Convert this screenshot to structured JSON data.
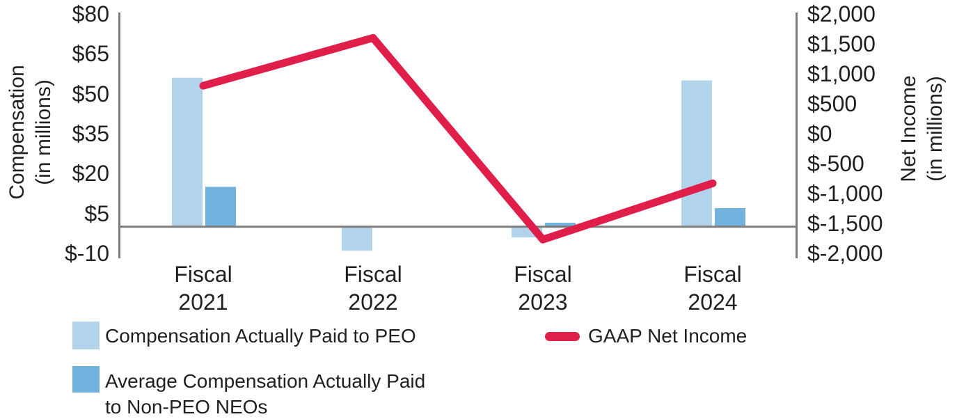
{
  "chart_data": {
    "type": "bar+line combo",
    "categories": [
      "Fiscal 2021",
      "Fiscal 2022",
      "Fiscal 2023",
      "Fiscal 2024"
    ],
    "series": [
      {
        "name": "Compensation Actually Paid to PEO",
        "type": "bar",
        "axis": "left",
        "color": "#b2d3ec",
        "values": [
          56,
          -9,
          -4,
          55
        ]
      },
      {
        "name": "Average Compensation Actually Paid to Non-PEO NEOs",
        "type": "bar",
        "axis": "left",
        "color": "#72b2de",
        "values": [
          15,
          0,
          1.5,
          7
        ]
      },
      {
        "name": "GAAP Net Income",
        "type": "line",
        "axis": "right",
        "color": "#e01e4a",
        "values": [
          800,
          1600,
          -1770,
          -830
        ]
      }
    ],
    "left_axis": {
      "title_line1": "Compensation",
      "title_line2": "(in millions)",
      "range": [
        -10,
        80
      ],
      "tick_values": [
        80,
        65,
        50,
        35,
        20,
        5,
        -10
      ],
      "tick_labels": [
        "$80",
        "$65",
        "$50",
        "$35",
        "$20",
        "$5",
        "$-10"
      ]
    },
    "right_axis": {
      "title_line1": "Net Income",
      "title_line2": "(in millions)",
      "range": [
        -2000,
        2000
      ],
      "tick_values": [
        2000,
        1500,
        1000,
        500,
        0,
        -500,
        -1000,
        -1500,
        -2000
      ],
      "tick_labels": [
        "$2,000",
        "$1,500",
        "$1,000",
        "$500",
        "$0",
        "$-500",
        "$-1,000",
        "$-1,500",
        "$-2,000"
      ]
    },
    "grid": "zero baseline only",
    "legend_position": "bottom-left"
  },
  "legend": {
    "items": [
      {
        "swatch": "light-blue-square",
        "label": "Compensation Actually Paid to PEO"
      },
      {
        "swatch": "red-line",
        "label": "GAAP Net Income"
      },
      {
        "swatch": "dark-blue-square",
        "label_line1": "Average Compensation Actually Paid",
        "label_line2": "to Non-PEO NEOs"
      }
    ]
  },
  "colors": {
    "peo_bar": "#b2d3ec",
    "non_peo_bar": "#72b2de",
    "net_income_line": "#e01e4a",
    "axis_gray": "#7d7d7d",
    "text": "#231f20"
  }
}
